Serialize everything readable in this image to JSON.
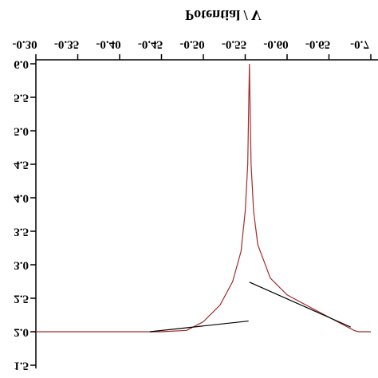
{
  "chart_data": {
    "type": "line",
    "title": "Potential / V",
    "xlim": [
      -0.3,
      -0.7
    ],
    "ylim": [
      1.5,
      6.0
    ],
    "xticks": [
      {
        "value": -0.3,
        "label": "-0.30"
      },
      -0.35,
      {
        "value": -0.4,
        "label": "-0.40"
      },
      -0.45,
      {
        "value": -0.5,
        "label": "-0.50"
      },
      -0.55,
      {
        "value": -0.6,
        "label": "-0.60"
      },
      -0.65,
      {
        "value": -0.7,
        "label": "-0.7"
      }
    ],
    "yticks": [
      1.5,
      {
        "value": 2.0,
        "label": "2.0"
      },
      2.5,
      {
        "value": 3.0,
        "label": "3.0"
      },
      3.5,
      {
        "value": 4.0,
        "label": "4.0"
      },
      4.5,
      {
        "value": 5.0,
        "label": "5.0"
      },
      5.5,
      {
        "value": 6.0,
        "label": "6.0"
      }
    ],
    "series": [
      {
        "color": "#a52a2a",
        "x": [
          -0.3,
          -0.45,
          -0.48,
          -0.5,
          -0.52,
          -0.535,
          -0.545,
          -0.55,
          -0.553,
          -0.555,
          -0.557,
          -0.56,
          -0.565,
          -0.58,
          -0.6,
          -0.63,
          -0.66,
          -0.68,
          -0.685,
          -0.7
        ],
        "values": [
          2.0,
          2.0,
          2.02,
          2.15,
          2.4,
          2.75,
          3.2,
          3.8,
          4.5,
          6.0,
          4.5,
          3.8,
          3.3,
          2.8,
          2.55,
          2.35,
          2.15,
          2.02,
          2.0,
          2.0
        ]
      },
      {
        "color": "#000000",
        "x": [
          -0.436,
          -0.554
        ],
        "values": [
          2.0,
          2.16
        ]
      },
      {
        "color": "#000000",
        "x": [
          -0.555,
          -0.676
        ],
        "values": [
          2.74,
          2.07
        ]
      }
    ]
  }
}
